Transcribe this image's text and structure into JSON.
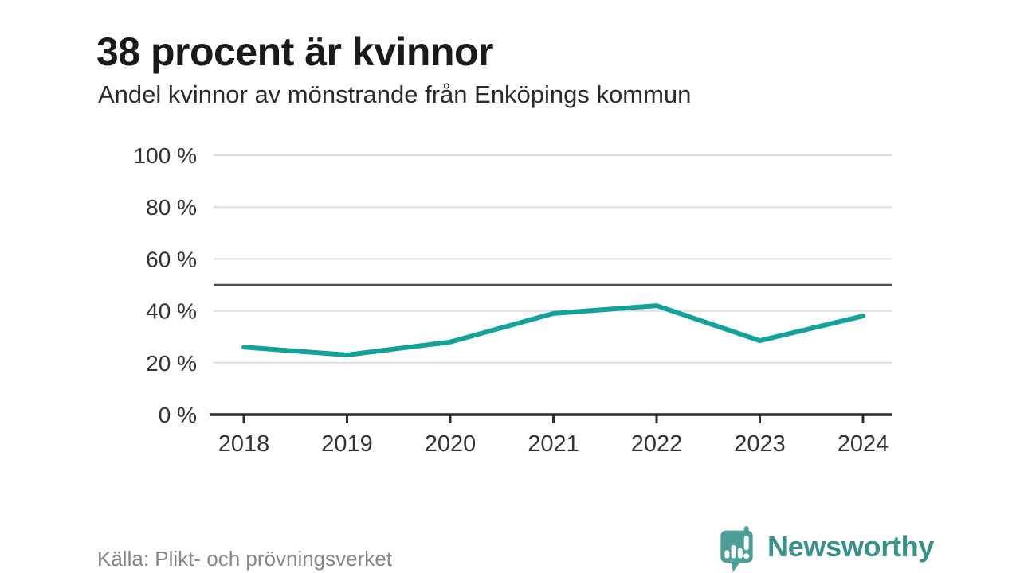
{
  "chart_data": {
    "type": "line",
    "title": "38 procent är kvinnor",
    "subtitle": "Andel kvinnor av mönstrande från Enköpings kommun",
    "categories": [
      "2018",
      "2019",
      "2020",
      "2021",
      "2022",
      "2023",
      "2024"
    ],
    "series": [
      {
        "name": "Andel kvinnor av mönstrande",
        "values": [
          26,
          23,
          28,
          39,
          42,
          28.5,
          38
        ]
      }
    ],
    "xlabel": "",
    "ylabel": "",
    "ylim": [
      0,
      100
    ],
    "yticks": [
      0,
      20,
      40,
      60,
      80,
      100
    ],
    "ytick_suffix": " %",
    "reference_line": 50,
    "grid": true,
    "legend_position": "none",
    "colors": {
      "line": "#12a29a",
      "grid": "#dcdcdc",
      "reference": "#4d4d4d",
      "axis": "#2e2e2e",
      "tick_label": "#333333"
    }
  },
  "footer": {
    "source": "Källa: Plikt- och prövningsverket",
    "brand": "Newsworthy",
    "brand_color": "#37918a",
    "icon_color": "#4b9f97"
  }
}
